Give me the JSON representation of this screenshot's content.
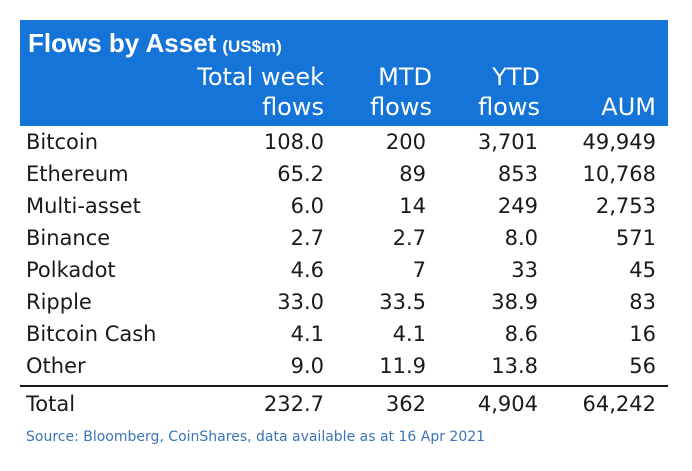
{
  "title": "Flows by Asset",
  "title_unit": "(US$m)",
  "columns": {
    "col1_line1": "Total week",
    "col1_line2": "flows",
    "col2_line1": "MTD",
    "col2_line2": "flows",
    "col3_line1": "YTD",
    "col3_line2": "flows",
    "col4_line1": "AUM"
  },
  "rows": [
    {
      "asset": "Bitcoin",
      "week": "108.0",
      "mtd": "200",
      "ytd": "3,701",
      "aum": "49,949"
    },
    {
      "asset": "Ethereum",
      "week": "65.2",
      "mtd": "89",
      "ytd": "853",
      "aum": "10,768"
    },
    {
      "asset": "Multi-asset",
      "week": "6.0",
      "mtd": "14",
      "ytd": "249",
      "aum": "2,753"
    },
    {
      "asset": "Binance",
      "week": "2.7",
      "mtd": "2.7",
      "ytd": "8.0",
      "aum": "571"
    },
    {
      "asset": "Polkadot",
      "week": "4.6",
      "mtd": "7",
      "ytd": "33",
      "aum": "45"
    },
    {
      "asset": "Ripple",
      "week": "33.0",
      "mtd": "33.5",
      "ytd": "38.9",
      "aum": "83"
    },
    {
      "asset": "Bitcoin Cash",
      "week": "4.1",
      "mtd": "4.1",
      "ytd": "8.6",
      "aum": "16"
    },
    {
      "asset": "Other",
      "week": "9.0",
      "mtd": "11.9",
      "ytd": "13.8",
      "aum": "56"
    }
  ],
  "total": {
    "asset": "Total",
    "week": "232.7",
    "mtd": "362",
    "ytd": "4,904",
    "aum": "64,242"
  },
  "source": "Source: Bloomberg, CoinShares, data available as at 16 Apr 2021",
  "colors": {
    "header_bg": "#1474d8",
    "source_text": "#3b74b7"
  }
}
